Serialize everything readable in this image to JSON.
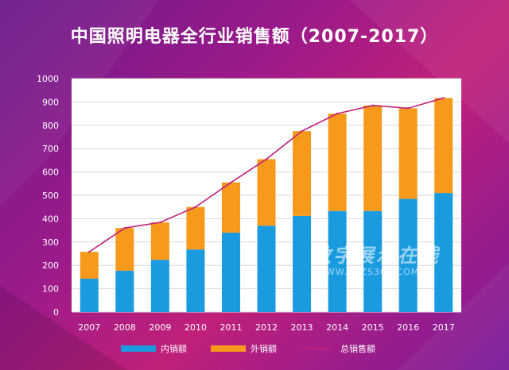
{
  "chart_data": {
    "type": "bar",
    "stacked": true,
    "title": "中国照明电器全行业销售额（2007-2017）",
    "categories": [
      "2007",
      "2008",
      "2009",
      "2010",
      "2011",
      "2012",
      "2013",
      "2014",
      "2015",
      "2016",
      "2017"
    ],
    "series": [
      {
        "name": "内销额",
        "type": "bar",
        "color": "#1a9be0",
        "values": [
          143,
          177,
          224,
          268,
          340,
          370,
          412,
          433,
          433,
          485,
          510
        ]
      },
      {
        "name": "外销额",
        "type": "bar",
        "color": "#f79a1b",
        "values": [
          115,
          183,
          160,
          182,
          215,
          285,
          363,
          417,
          452,
          388,
          407
        ]
      },
      {
        "name": "总销售额",
        "type": "line",
        "color": "#c0207a",
        "values": [
          258,
          360,
          384,
          450,
          555,
          655,
          775,
          850,
          885,
          873,
          917
        ]
      }
    ],
    "yticks": [
      "0",
      "100",
      "200",
      "300",
      "400",
      "500",
      "600",
      "700",
      "800",
      "900",
      "1000"
    ],
    "ylim": [
      0,
      1000
    ],
    "grid": true,
    "legend_position": "bottom"
  },
  "watermark": {
    "text": "数字展示在线",
    "url": "WWW.SZZS360.COM"
  }
}
